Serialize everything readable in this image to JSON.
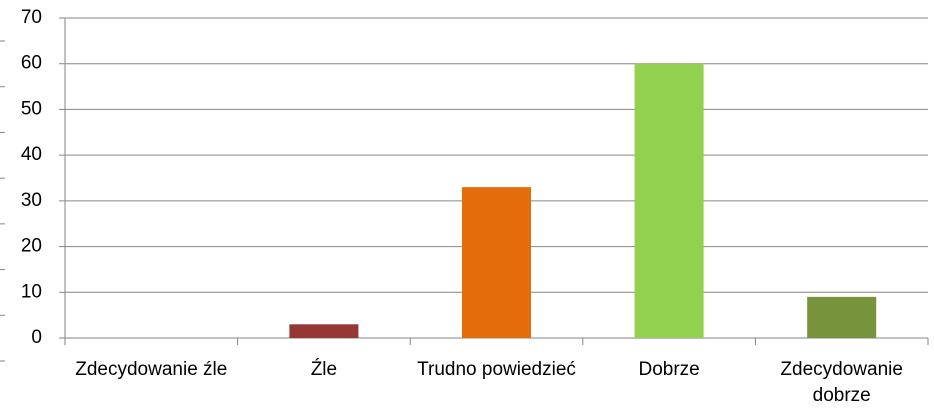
{
  "chart_data": {
    "type": "bar",
    "categories": [
      "Zdecydowanie źle",
      "Źle",
      "Trudno powiedzieć",
      "Dobrze",
      "Zdecydowanie dobrze"
    ],
    "values": [
      0,
      3,
      33,
      60,
      9
    ],
    "colors": [
      "#4f81bd",
      "#953735",
      "#e46c0a",
      "#92d050",
      "#77933c"
    ],
    "ylim": [
      0,
      70
    ],
    "yticks": [
      0,
      10,
      20,
      30,
      40,
      50,
      60,
      70
    ],
    "grid": true
  }
}
